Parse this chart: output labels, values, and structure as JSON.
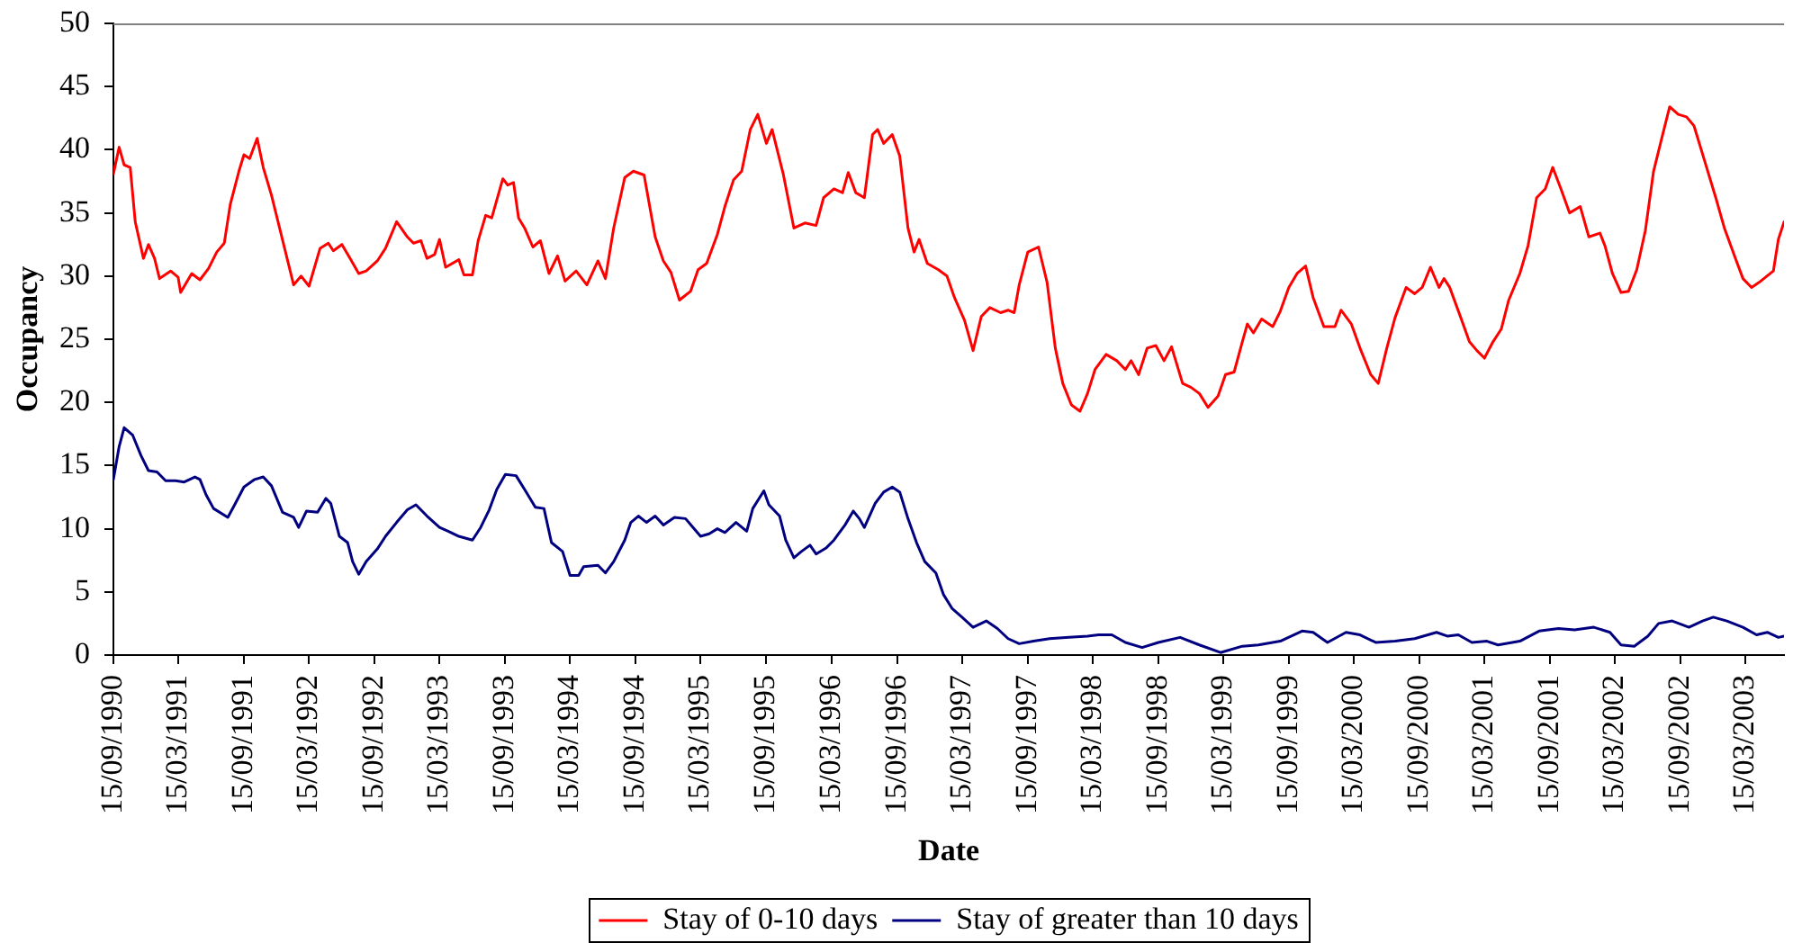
{
  "chart_data": {
    "type": "line",
    "xlabel": "Date",
    "ylabel": "Occupancy",
    "xlim": [
      "1990-09-15",
      "2003-07-01"
    ],
    "ylim": [
      0,
      50
    ],
    "xticks": [
      {
        "value": "1990-09-15",
        "label": "15/09/1990"
      },
      {
        "value": "1991-03-15",
        "label": "15/03/1991"
      },
      {
        "value": "1991-09-15",
        "label": "15/09/1991"
      },
      {
        "value": "1992-03-15",
        "label": "15/03/1992"
      },
      {
        "value": "1992-09-15",
        "label": "15/09/1992"
      },
      {
        "value": "1993-03-15",
        "label": "15/03/1993"
      },
      {
        "value": "1993-09-15",
        "label": "15/09/1993"
      },
      {
        "value": "1994-03-15",
        "label": "15/03/1994"
      },
      {
        "value": "1994-09-15",
        "label": "15/09/1994"
      },
      {
        "value": "1995-03-15",
        "label": "15/03/1995"
      },
      {
        "value": "1995-09-15",
        "label": "15/09/1995"
      },
      {
        "value": "1996-03-15",
        "label": "15/03/1996"
      },
      {
        "value": "1996-09-15",
        "label": "15/09/1996"
      },
      {
        "value": "1997-03-15",
        "label": "15/03/1997"
      },
      {
        "value": "1997-09-15",
        "label": "15/09/1997"
      },
      {
        "value": "1998-03-15",
        "label": "15/03/1998"
      },
      {
        "value": "1998-09-15",
        "label": "15/09/1998"
      },
      {
        "value": "1999-03-15",
        "label": "15/03/1999"
      },
      {
        "value": "1999-09-15",
        "label": "15/09/1999"
      },
      {
        "value": "2000-03-15",
        "label": "15/03/2000"
      },
      {
        "value": "2000-09-15",
        "label": "15/09/2000"
      },
      {
        "value": "2001-03-15",
        "label": "15/03/2001"
      },
      {
        "value": "2001-09-15",
        "label": "15/09/2001"
      },
      {
        "value": "2002-03-15",
        "label": "15/03/2002"
      },
      {
        "value": "2002-09-15",
        "label": "15/09/2002"
      },
      {
        "value": "2003-03-15",
        "label": "15/03/2003"
      }
    ],
    "yticks": [
      0,
      5,
      10,
      15,
      20,
      25,
      30,
      35,
      40,
      45,
      50
    ],
    "grid": false,
    "legend": "bottom",
    "marker": "none",
    "line_style": "solid",
    "series": [
      {
        "name": "Stay of 0-10 days",
        "color": "#ff0000",
        "x": [
          "1990-09-15",
          "1990-10-01",
          "1990-10-15",
          "1990-11-01",
          "1990-11-15",
          "1990-12-08",
          "1990-12-22",
          "1991-01-08",
          "1991-01-22",
          "1991-02-22",
          "1991-03-15",
          "1991-03-22",
          "1991-04-22",
          "1991-05-15",
          "1991-06-08",
          "1991-07-01",
          "1991-07-22",
          "1991-08-08",
          "1991-09-01",
          "1991-09-15",
          "1991-10-01",
          "1991-10-22",
          "1991-11-08",
          "1991-12-01",
          "1991-12-22",
          "1992-02-01",
          "1992-02-22",
          "1992-03-15",
          "1992-04-15",
          "1992-05-08",
          "1992-05-22",
          "1992-06-15",
          "1992-07-08",
          "1992-08-01",
          "1992-08-22",
          "1992-09-22",
          "1992-10-15",
          "1992-11-15",
          "1992-12-15",
          "1993-01-01",
          "1993-01-22",
          "1993-02-08",
          "1993-03-01",
          "1993-03-15",
          "1993-04-01",
          "1993-05-08",
          "1993-05-22",
          "1993-06-15",
          "1993-07-01",
          "1993-07-22",
          "1993-08-08",
          "1993-09-08",
          "1993-09-22",
          "1993-10-08",
          "1993-10-22",
          "1993-11-08",
          "1993-12-01",
          "1993-12-22",
          "1994-01-15",
          "1994-02-08",
          "1994-03-01",
          "1994-04-01",
          "1994-05-01",
          "1994-06-01",
          "1994-06-22",
          "1994-07-15",
          "1994-08-15",
          "1994-09-08",
          "1994-10-08",
          "1994-11-08",
          "1994-12-01",
          "1994-12-22",
          "1995-01-15",
          "1995-02-15",
          "1995-03-08",
          "1995-04-01",
          "1995-05-01",
          "1995-05-22",
          "1995-06-15",
          "1995-07-08",
          "1995-08-01",
          "1995-08-22",
          "1995-09-15",
          "1995-10-01",
          "1995-11-01",
          "1995-12-01",
          "1996-01-01",
          "1996-02-01",
          "1996-02-22",
          "1996-03-22",
          "1996-04-15",
          "1996-05-01",
          "1996-05-22",
          "1996-06-15",
          "1996-07-08",
          "1996-07-22",
          "1996-08-08",
          "1996-09-01",
          "1996-09-22",
          "1996-10-15",
          "1996-11-01",
          "1996-11-15",
          "1996-12-08",
          "1997-01-08",
          "1997-02-01",
          "1997-02-22",
          "1997-03-22",
          "1997-04-15",
          "1997-05-08",
          "1997-06-01",
          "1997-07-01",
          "1997-07-22",
          "1997-08-08",
          "1997-08-22",
          "1997-09-15",
          "1997-10-15",
          "1997-11-08",
          "1997-12-01",
          "1997-12-22",
          "1998-01-15",
          "1998-02-08",
          "1998-03-01",
          "1998-03-22",
          "1998-04-22",
          "1998-05-22",
          "1998-06-15",
          "1998-07-01",
          "1998-07-22",
          "1998-08-15",
          "1998-09-08",
          "1998-10-01",
          "1998-10-22",
          "1998-11-22",
          "1998-12-15",
          "1999-01-08",
          "1999-02-01",
          "1999-03-01",
          "1999-03-22",
          "1999-04-15",
          "1999-05-08",
          "1999-05-22",
          "1999-06-08",
          "1999-07-01",
          "1999-08-01",
          "1999-08-22",
          "1999-09-15",
          "1999-10-08",
          "1999-11-01",
          "1999-11-22",
          "1999-12-22",
          "2000-01-22",
          "2000-02-08",
          "2000-03-08",
          "2000-04-01",
          "2000-05-01",
          "2000-05-22",
          "2000-06-15",
          "2000-07-08",
          "2000-08-08",
          "2000-09-01",
          "2000-09-22",
          "2000-10-15",
          "2000-11-08",
          "2000-11-22",
          "2000-12-08",
          "2001-01-08",
          "2001-02-01",
          "2001-02-22",
          "2001-03-15",
          "2001-04-08",
          "2001-05-01",
          "2001-05-22",
          "2001-06-22",
          "2001-07-15",
          "2001-08-08",
          "2001-09-01",
          "2001-09-22",
          "2001-10-15",
          "2001-11-08",
          "2001-12-08",
          "2002-01-01",
          "2002-02-01",
          "2002-02-15",
          "2002-03-08",
          "2002-04-01",
          "2002-04-22",
          "2002-05-15",
          "2002-06-08",
          "2002-07-01",
          "2002-07-22",
          "2002-08-15",
          "2002-09-08",
          "2002-10-01",
          "2002-10-22",
          "2002-11-22",
          "2002-12-22",
          "2003-01-15",
          "2003-02-15",
          "2003-03-08",
          "2003-04-01",
          "2003-04-22",
          "2003-06-01",
          "2003-06-15",
          "2003-07-01"
        ],
        "values": [
          38.1,
          40.2,
          38.8,
          38.6,
          34.3,
          31.4,
          32.5,
          31.4,
          29.8,
          30.4,
          29.9,
          28.7,
          30.2,
          29.7,
          30.6,
          31.9,
          32.6,
          35.7,
          38.3,
          39.6,
          39.3,
          40.9,
          38.6,
          36.4,
          34.0,
          29.3,
          30.0,
          29.2,
          32.2,
          32.6,
          32.0,
          32.5,
          31.4,
          30.2,
          30.4,
          31.2,
          32.2,
          34.3,
          33.1,
          32.6,
          32.8,
          31.4,
          31.7,
          32.9,
          30.7,
          31.3,
          30.1,
          30.1,
          32.8,
          34.8,
          34.6,
          37.7,
          37.2,
          37.4,
          34.6,
          33.8,
          32.3,
          32.8,
          30.2,
          31.6,
          29.6,
          30.4,
          29.3,
          31.2,
          29.8,
          33.8,
          37.8,
          38.3,
          38.0,
          33.1,
          31.2,
          30.3,
          28.1,
          28.8,
          30.5,
          31.0,
          33.3,
          35.5,
          37.6,
          38.3,
          41.6,
          42.8,
          40.5,
          41.6,
          38.1,
          33.8,
          34.2,
          34.0,
          36.2,
          36.9,
          36.6,
          38.2,
          36.6,
          36.2,
          41.2,
          41.6,
          40.5,
          41.2,
          39.5,
          33.8,
          31.9,
          32.9,
          31.0,
          30.5,
          30.0,
          28.3,
          26.5,
          24.1,
          26.8,
          27.5,
          27.1,
          27.3,
          27.1,
          29.3,
          31.9,
          32.3,
          29.5,
          24.3,
          21.5,
          19.8,
          19.3,
          20.7,
          22.6,
          23.8,
          23.3,
          22.6,
          23.3,
          22.2,
          24.3,
          24.5,
          23.3,
          24.4,
          21.5,
          21.2,
          20.7,
          19.6,
          20.5,
          22.2,
          22.4,
          24.8,
          26.2,
          25.5,
          26.6,
          26.0,
          27.2,
          29.1,
          30.2,
          30.8,
          28.3,
          26.0,
          26.0,
          27.3,
          26.2,
          24.3,
          22.2,
          21.5,
          24.3,
          26.7,
          29.1,
          28.6,
          29.1,
          30.7,
          29.1,
          29.8,
          29.1,
          26.7,
          24.8,
          24.1,
          23.5,
          24.8,
          25.8,
          28.1,
          30.2,
          32.4,
          36.2,
          36.9,
          38.6,
          36.9,
          35.0,
          35.5,
          33.1,
          33.4,
          32.4,
          30.2,
          28.7,
          28.8,
          30.5,
          33.6,
          38.3,
          40.7,
          43.4,
          42.8,
          42.6,
          41.9,
          39.0,
          36.2,
          33.8,
          31.4,
          29.8,
          29.1,
          29.5,
          30.4,
          32.9,
          34.3
        ]
      },
      {
        "name": "Stay of greater than 10 days",
        "color": "#000080",
        "x": [
          "1990-09-15",
          "1990-10-01",
          "1990-10-15",
          "1990-11-08",
          "1990-12-01",
          "1990-12-22",
          "1991-01-15",
          "1991-02-08",
          "1991-03-08",
          "1991-04-01",
          "1991-05-01",
          "1991-05-15",
          "1991-06-01",
          "1991-06-22",
          "1991-08-01",
          "1991-08-22",
          "1991-09-15",
          "1991-10-15",
          "1991-11-08",
          "1991-12-01",
          "1992-01-01",
          "1992-02-01",
          "1992-02-15",
          "1992-03-08",
          "1992-04-08",
          "1992-05-01",
          "1992-05-15",
          "1992-06-08",
          "1992-07-01",
          "1992-07-15",
          "1992-08-01",
          "1992-08-22",
          "1992-09-22",
          "1992-10-15",
          "1992-11-15",
          "1992-12-15",
          "1993-01-08",
          "1993-02-08",
          "1993-03-15",
          "1993-04-08",
          "1993-05-08",
          "1993-06-15",
          "1993-07-08",
          "1993-08-01",
          "1993-08-22",
          "1993-09-15",
          "1993-10-15",
          "1993-11-08",
          "1993-12-08",
          "1994-01-01",
          "1994-01-22",
          "1994-02-22",
          "1994-03-15",
          "1994-04-08",
          "1994-04-22",
          "1994-06-01",
          "1994-06-22",
          "1994-07-15",
          "1994-08-15",
          "1994-09-01",
          "1994-09-22",
          "1994-10-15",
          "1994-11-08",
          "1994-12-01",
          "1995-01-01",
          "1995-02-01",
          "1995-02-22",
          "1995-03-15",
          "1995-04-08",
          "1995-05-01",
          "1995-05-22",
          "1995-06-22",
          "1995-07-22",
          "1995-08-08",
          "1995-09-08",
          "1995-09-22",
          "1995-10-22",
          "1995-11-08",
          "1995-12-01",
          "1995-12-22",
          "1996-01-15",
          "1996-02-01",
          "1996-03-01",
          "1996-03-22",
          "1996-04-22",
          "1996-05-15",
          "1996-06-01",
          "1996-06-15",
          "1996-07-15",
          "1996-08-08",
          "1996-09-01",
          "1996-09-22",
          "1996-10-15",
          "1996-11-08",
          "1996-12-01",
          "1997-01-01",
          "1997-01-22",
          "1997-02-15",
          "1997-03-15",
          "1997-04-15",
          "1997-05-22",
          "1997-06-22",
          "1997-07-22",
          "1997-08-22",
          "1997-10-01",
          "1997-11-15",
          "1998-01-08",
          "1998-03-01",
          "1998-04-01",
          "1998-05-08",
          "1998-06-15",
          "1998-08-01",
          "1998-09-15",
          "1998-11-15",
          "1999-01-08",
          "1999-03-08",
          "1999-05-08",
          "1999-06-22",
          "1999-08-22",
          "1999-10-22",
          "1999-11-22",
          "2000-01-01",
          "2000-02-22",
          "2000-04-01",
          "2000-05-15",
          "2000-07-08",
          "2000-09-01",
          "2000-11-01",
          "2000-12-01",
          "2001-01-01",
          "2001-02-08",
          "2001-03-22",
          "2001-04-22",
          "2001-06-22",
          "2001-08-15",
          "2001-10-08",
          "2001-11-22",
          "2002-01-15",
          "2002-03-01",
          "2002-04-01",
          "2002-05-08",
          "2002-06-15",
          "2002-07-15",
          "2002-08-22",
          "2002-10-08",
          "2002-11-15",
          "2002-12-15",
          "2003-01-22",
          "2003-03-08",
          "2003-04-15",
          "2003-05-15",
          "2003-06-15",
          "2003-07-01"
        ],
        "values": [
          13.9,
          16.5,
          18.0,
          17.4,
          15.8,
          14.6,
          14.5,
          13.8,
          13.8,
          13.7,
          14.1,
          13.9,
          12.7,
          11.6,
          10.9,
          12.0,
          13.3,
          13.9,
          14.1,
          13.4,
          11.3,
          10.9,
          10.1,
          11.4,
          11.3,
          12.4,
          12.0,
          9.4,
          8.9,
          7.4,
          6.4,
          7.4,
          8.4,
          9.4,
          10.5,
          11.5,
          11.9,
          11.0,
          10.1,
          9.8,
          9.4,
          9.1,
          10.1,
          11.5,
          13.1,
          14.3,
          14.2,
          13.1,
          11.7,
          11.6,
          8.9,
          8.2,
          6.3,
          6.3,
          7.0,
          7.1,
          6.5,
          7.4,
          9.1,
          10.5,
          11.0,
          10.5,
          11.0,
          10.3,
          10.9,
          10.8,
          10.1,
          9.4,
          9.6,
          10.0,
          9.7,
          10.5,
          9.8,
          11.6,
          13.0,
          11.9,
          11.0,
          9.1,
          7.7,
          8.2,
          8.7,
          8.0,
          8.5,
          9.1,
          10.3,
          11.4,
          10.8,
          10.1,
          12.0,
          12.9,
          13.3,
          12.9,
          10.8,
          8.9,
          7.4,
          6.5,
          4.8,
          3.7,
          3.0,
          2.2,
          2.7,
          2.1,
          1.3,
          0.9,
          1.1,
          1.3,
          1.4,
          1.5,
          1.6,
          1.6,
          1.0,
          0.6,
          1.0,
          1.4,
          0.8,
          0.2,
          0.7,
          0.8,
          1.1,
          1.9,
          1.8,
          1.0,
          1.8,
          1.6,
          1.0,
          1.1,
          1.3,
          1.8,
          1.5,
          1.6,
          1.0,
          1.1,
          0.8,
          1.1,
          1.9,
          2.1,
          2.0,
          2.2,
          1.8,
          0.8,
          0.7,
          1.5,
          2.5,
          2.7,
          2.2,
          2.7,
          3.0,
          2.7,
          2.2,
          1.6,
          1.8,
          1.4,
          1.5
        ]
      }
    ]
  }
}
